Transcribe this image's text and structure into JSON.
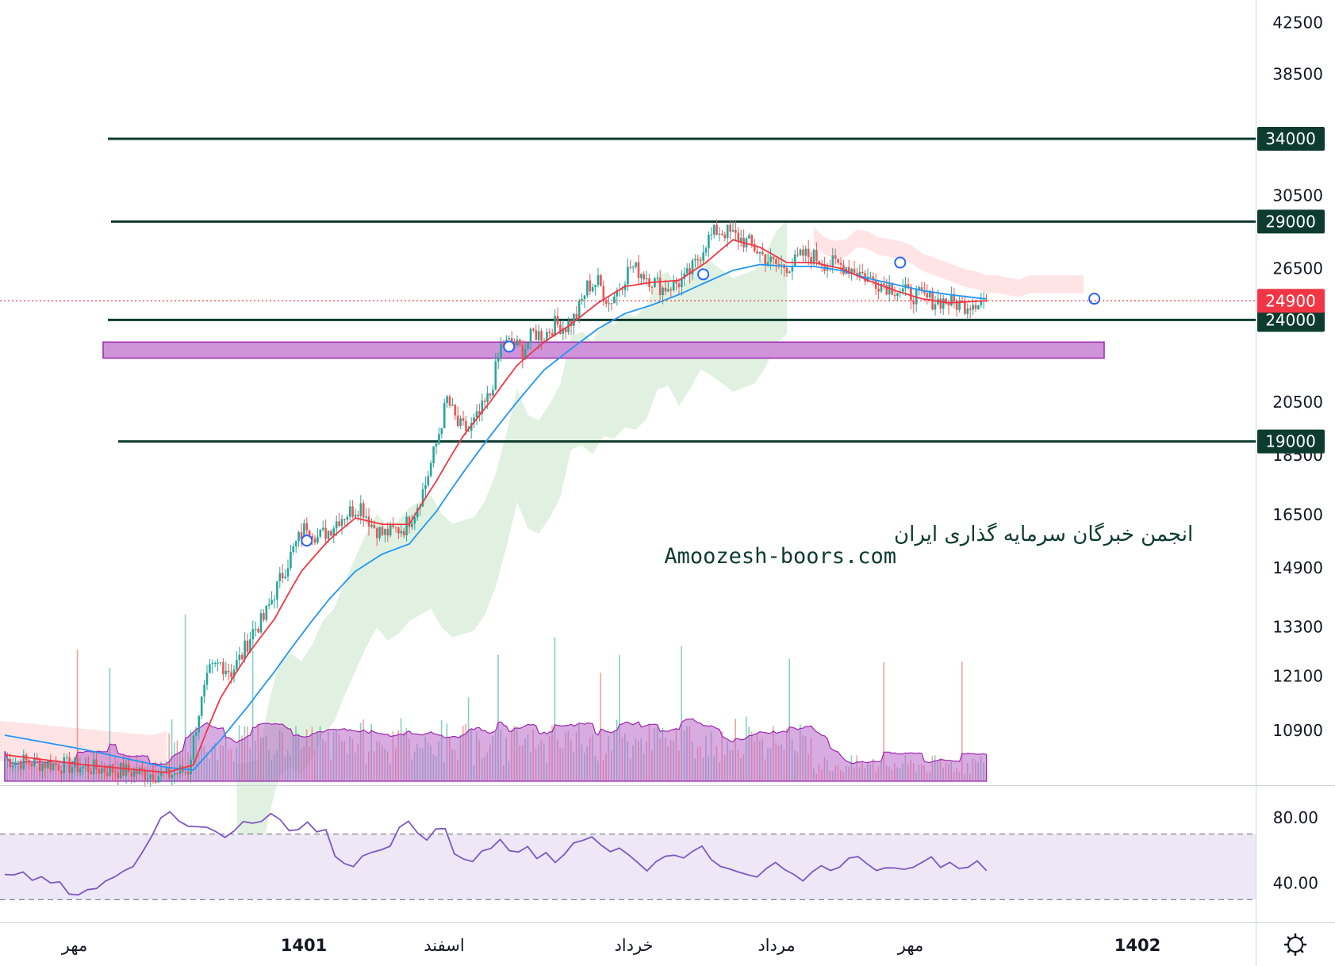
{
  "chart_data": {
    "type": "candlestick",
    "price_axis": {
      "scale": "log",
      "ticks": [
        42500,
        38500,
        30500,
        26500,
        20500,
        18500,
        16500,
        14900,
        13300,
        12100,
        10900
      ],
      "range": [
        9900,
        44000
      ]
    },
    "time_axis": {
      "labels": [
        {
          "text": "مهر",
          "bold": false
        },
        {
          "text": "1401",
          "bold": true
        },
        {
          "text": "اسفند",
          "bold": false
        },
        {
          "text": "خرداد",
          "bold": false
        },
        {
          "text": "مرداد",
          "bold": false
        },
        {
          "text": "مهر",
          "bold": false
        },
        {
          "text": "1402",
          "bold": true
        }
      ]
    },
    "horizontal_levels": [
      34000,
      29000,
      24000,
      19000
    ],
    "current_price": 24900,
    "support_zone": [
      22300,
      23000
    ],
    "price_path": [
      [
        0,
        10300
      ],
      [
        10,
        10250
      ],
      [
        20,
        10200
      ],
      [
        30,
        10150
      ],
      [
        40,
        10100
      ],
      [
        50,
        10050
      ],
      [
        60,
        10000
      ],
      [
        68,
        10100
      ],
      [
        72,
        11300
      ],
      [
        76,
        12200
      ],
      [
        80,
        12400
      ],
      [
        84,
        12200
      ],
      [
        88,
        12600
      ],
      [
        92,
        13200
      ],
      [
        96,
        13500
      ],
      [
        100,
        14200
      ],
      [
        104,
        14900
      ],
      [
        108,
        15600
      ],
      [
        112,
        16200
      ],
      [
        116,
        15800
      ],
      [
        120,
        16000
      ],
      [
        124,
        16400
      ],
      [
        128,
        16600
      ],
      [
        132,
        16800
      ],
      [
        136,
        16200
      ],
      [
        140,
        15900
      ],
      [
        144,
        16000
      ],
      [
        148,
        16100
      ],
      [
        152,
        16600
      ],
      [
        156,
        17500
      ],
      [
        160,
        18900
      ],
      [
        164,
        20600
      ],
      [
        168,
        19600
      ],
      [
        172,
        19400
      ],
      [
        176,
        20000
      ],
      [
        180,
        20800
      ],
      [
        184,
        22800
      ],
      [
        188,
        23000
      ],
      [
        192,
        22600
      ],
      [
        196,
        23400
      ],
      [
        200,
        23300
      ],
      [
        204,
        23800
      ],
      [
        208,
        23700
      ],
      [
        212,
        24200
      ],
      [
        216,
        25600
      ],
      [
        220,
        25800
      ],
      [
        224,
        24800
      ],
      [
        228,
        25600
      ],
      [
        232,
        26600
      ],
      [
        236,
        26300
      ],
      [
        240,
        25900
      ],
      [
        244,
        25500
      ],
      [
        248,
        25700
      ],
      [
        252,
        25900
      ],
      [
        256,
        26700
      ],
      [
        260,
        27900
      ],
      [
        264,
        28500
      ],
      [
        268,
        28400
      ],
      [
        272,
        28100
      ],
      [
        276,
        27800
      ],
      [
        280,
        27300
      ],
      [
        284,
        26800
      ],
      [
        288,
        26600
      ],
      [
        292,
        26700
      ],
      [
        296,
        27200
      ],
      [
        300,
        27100
      ],
      [
        304,
        26800
      ],
      [
        308,
        26700
      ],
      [
        312,
        26600
      ],
      [
        316,
        26400
      ],
      [
        320,
        26000
      ],
      [
        324,
        25800
      ],
      [
        328,
        25600
      ],
      [
        332,
        25400
      ],
      [
        336,
        25200
      ],
      [
        340,
        25100
      ],
      [
        344,
        24900
      ],
      [
        348,
        24900
      ],
      [
        352,
        24800
      ],
      [
        356,
        24700
      ],
      [
        360,
        24900
      ],
      [
        363,
        24900
      ]
    ],
    "ema_fast": [
      [
        0,
        10400
      ],
      [
        30,
        10200
      ],
      [
        60,
        10050
      ],
      [
        70,
        10200
      ],
      [
        80,
        11600
      ],
      [
        90,
        12600
      ],
      [
        100,
        13500
      ],
      [
        110,
        14800
      ],
      [
        120,
        15700
      ],
      [
        130,
        16400
      ],
      [
        140,
        16200
      ],
      [
        150,
        16200
      ],
      [
        160,
        17600
      ],
      [
        170,
        19200
      ],
      [
        180,
        20500
      ],
      [
        190,
        22000
      ],
      [
        200,
        23000
      ],
      [
        210,
        23800
      ],
      [
        220,
        24800
      ],
      [
        230,
        25600
      ],
      [
        240,
        25800
      ],
      [
        250,
        25900
      ],
      [
        260,
        26800
      ],
      [
        270,
        28000
      ],
      [
        280,
        27600
      ],
      [
        290,
        26800
      ],
      [
        300,
        26800
      ],
      [
        310,
        26500
      ],
      [
        320,
        25900
      ],
      [
        330,
        25400
      ],
      [
        340,
        25000
      ],
      [
        350,
        24800
      ],
      [
        363,
        24900
      ]
    ],
    "ema_slow": [
      [
        0,
        10800
      ],
      [
        30,
        10500
      ],
      [
        60,
        10150
      ],
      [
        70,
        10100
      ],
      [
        80,
        10700
      ],
      [
        90,
        11400
      ],
      [
        100,
        12200
      ],
      [
        110,
        13100
      ],
      [
        120,
        14000
      ],
      [
        130,
        14800
      ],
      [
        140,
        15300
      ],
      [
        150,
        15600
      ],
      [
        160,
        16600
      ],
      [
        170,
        17900
      ],
      [
        180,
        19200
      ],
      [
        190,
        20500
      ],
      [
        200,
        21800
      ],
      [
        210,
        22700
      ],
      [
        220,
        23600
      ],
      [
        230,
        24300
      ],
      [
        240,
        24700
      ],
      [
        250,
        25200
      ],
      [
        260,
        25800
      ],
      [
        270,
        26400
      ],
      [
        280,
        26700
      ],
      [
        290,
        26600
      ],
      [
        300,
        26600
      ],
      [
        310,
        26400
      ],
      [
        320,
        26000
      ],
      [
        330,
        25700
      ],
      [
        340,
        25400
      ],
      [
        350,
        25200
      ],
      [
        363,
        25000
      ]
    ],
    "rsi": {
      "ticks": [
        80.0,
        40.0
      ],
      "overbought": 70,
      "oversold": 30,
      "values": [
        45,
        44,
        46,
        42,
        43,
        40,
        38,
        36,
        34,
        36,
        38,
        42,
        44,
        46,
        52,
        60,
        66,
        82,
        84,
        80,
        74,
        76,
        72,
        74,
        70,
        72,
        75,
        76,
        78,
        82,
        76,
        74,
        73,
        76,
        74,
        70,
        58,
        52,
        50,
        54,
        56,
        60,
        64,
        72,
        78,
        70,
        66,
        72,
        74,
        58,
        54,
        56,
        62,
        60,
        64,
        58,
        60,
        62,
        58,
        56,
        54,
        60,
        62,
        66,
        68,
        62,
        58,
        60,
        56,
        54,
        50,
        54,
        56,
        60,
        58,
        62,
        60,
        56,
        52,
        50,
        48,
        46,
        44,
        48,
        50,
        46,
        44,
        42,
        44,
        48,
        50,
        52,
        54,
        56,
        50,
        48,
        52,
        50,
        48,
        52,
        54,
        56,
        52,
        50,
        48,
        50,
        52,
        48
      ]
    },
    "markers": [
      {
        "x": 112,
        "price": 15700
      },
      {
        "x": 187,
        "price": 22800
      },
      {
        "x": 259,
        "price": 26200
      },
      {
        "x": 332,
        "price": 26800
      },
      {
        "x": 404,
        "price": 25000
      }
    ]
  },
  "watermark": {
    "line1": "انجمن خبرگان سرمایه گذاری ایران",
    "line2": "Amoozesh-boors.com"
  },
  "colors": {
    "level_line": "#0d3b2e",
    "up_candle": "#26a69a",
    "down_candle": "#ef5350",
    "ema_fast": "#f23645",
    "ema_slow": "#2196f3",
    "cloud_green": "#c8e6c9",
    "cloud_red": "#ffcdd2",
    "zone_fill": "#ce93d8",
    "zone_border": "#9c27b0",
    "volume_ma": "#ba68c8",
    "rsi_line": "#7e57c2",
    "rsi_band": "#ede7f6",
    "current_price": "#f23645"
  }
}
